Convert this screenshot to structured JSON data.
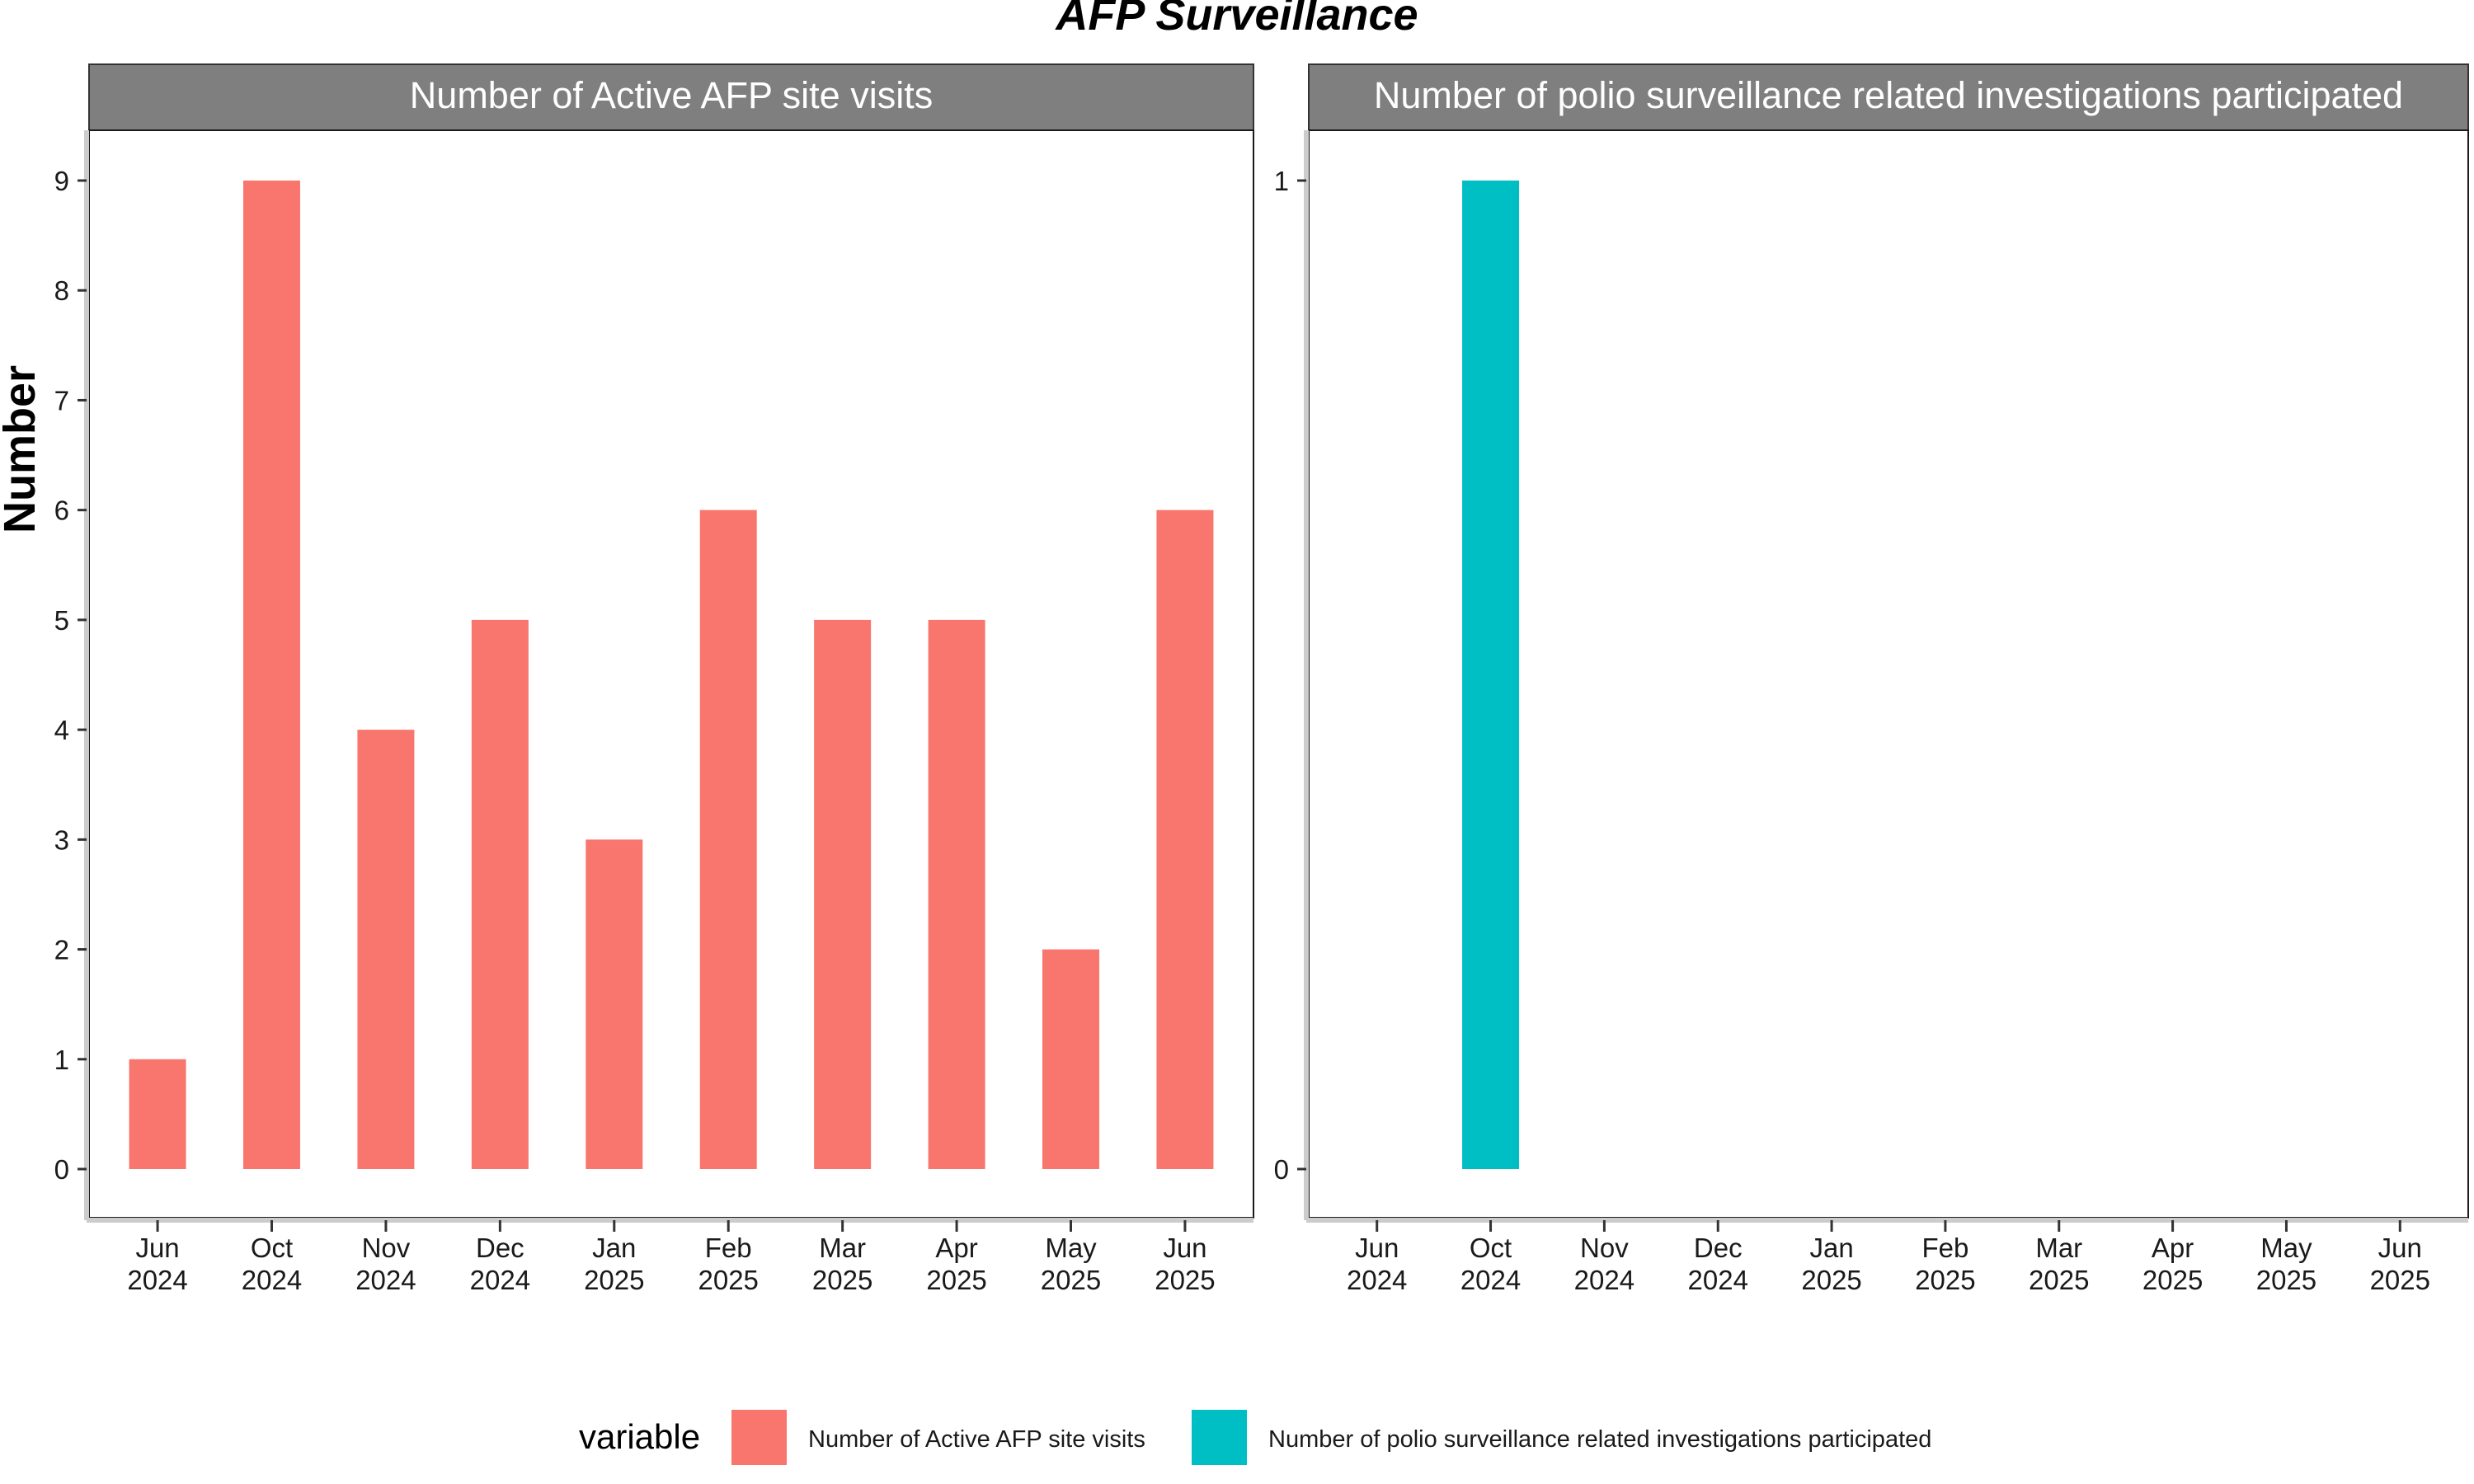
{
  "chart_data": {
    "type": "bar",
    "title": "AFP Surveillance",
    "ylabel": "Number",
    "categories": [
      "Jun\n2024",
      "Oct\n2024",
      "Nov\n2024",
      "Dec\n2024",
      "Jan\n2025",
      "Feb\n2025",
      "Mar\n2025",
      "Apr\n2025",
      "May\n2025",
      "Jun\n2025"
    ],
    "panels": [
      {
        "strip": "Number of Active AFP site visits",
        "color": "#F8766D",
        "ylim": [
          0,
          9
        ],
        "yticks": [
          0,
          1,
          2,
          3,
          4,
          5,
          6,
          7,
          8,
          9
        ],
        "values": [
          1,
          9,
          4,
          5,
          3,
          6,
          5,
          5,
          2,
          6
        ]
      },
      {
        "strip": "Number of polio surveillance related investigations participated",
        "color": "#00BFC4",
        "ylim": [
          0,
          1
        ],
        "yticks": [
          0,
          1
        ],
        "values": [
          null,
          1,
          null,
          null,
          null,
          null,
          null,
          null,
          null,
          null
        ]
      }
    ],
    "legend": {
      "title": "variable",
      "position": "bottom",
      "items": [
        {
          "label": "Number of Active AFP site visits",
          "color": "#F8766D"
        },
        {
          "label": "Number of polio surveillance related investigations participated",
          "color": "#00BFC4"
        }
      ]
    },
    "grid": false
  }
}
